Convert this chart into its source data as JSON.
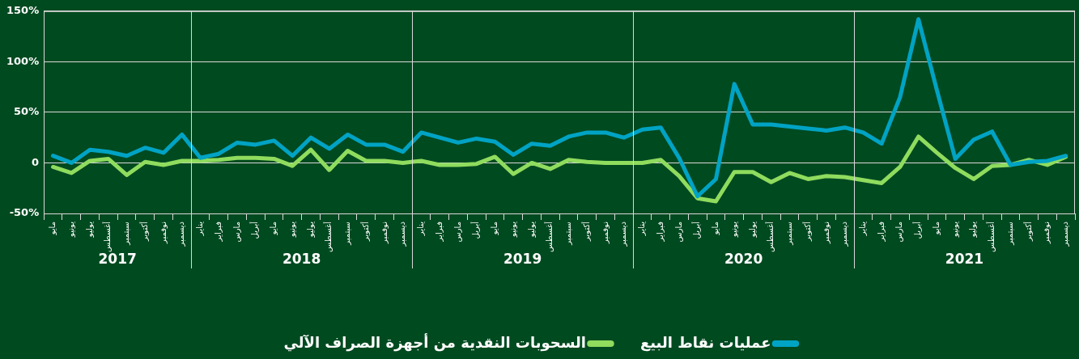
{
  "chart_data": {
    "type": "line",
    "categories": [
      "مايو",
      "يونيو",
      "يوليو",
      "أغسطس",
      "سبتمبر",
      "أكتوبر",
      "نوفمبر",
      "ديسمبر",
      "يناير",
      "فبراير",
      "مارس",
      "أبريل",
      "مايو",
      "يونيو",
      "يوليو",
      "أغسطس",
      "سبتمبر",
      "أكتوبر",
      "نوفمبر",
      "ديسمبر",
      "يناير",
      "فبراير",
      "مارس",
      "أبريل",
      "مايو",
      "يونيو",
      "يوليو",
      "أغسطس",
      "سبتمبر",
      "أكتوبر",
      "نوفمبر",
      "ديسمبر",
      "يناير",
      "فبراير",
      "مارس",
      "أبريل",
      "مايو",
      "يونيو",
      "يوليو",
      "أغسطس",
      "سبتمبر",
      "أكتوبر",
      "نوفمبر",
      "ديسمبر",
      "يناير",
      "فبراير",
      "مارس",
      "أبريل",
      "مايو",
      "يونيو",
      "يوليو",
      "أغسطس",
      "سبتمبر",
      "أكتوبر",
      "نوفمبر",
      "ديسمبر"
    ],
    "series": [
      {
        "name": "عمليات نقاط البيع",
        "color": "#00a3c4",
        "values": [
          7,
          0,
          13,
          11,
          7,
          15,
          10,
          28,
          5,
          9,
          20,
          18,
          22,
          7,
          25,
          14,
          28,
          18,
          18,
          11,
          30,
          25,
          20,
          24,
          21,
          8,
          19,
          17,
          26,
          30,
          30,
          25,
          33,
          35,
          5,
          -33,
          -16,
          78,
          38,
          38,
          36,
          34,
          32,
          35,
          30,
          19,
          65,
          142,
          72,
          4,
          23,
          31,
          -2,
          1,
          2,
          7
        ]
      },
      {
        "name": "السحوبات النقدية من أجهزة الصراف الآلي",
        "color": "#8fdc5e",
        "values": [
          -4,
          -10,
          2,
          4,
          -12,
          1,
          -2,
          2,
          2,
          3,
          5,
          5,
          4,
          -3,
          13,
          -7,
          12,
          2,
          2,
          0,
          2,
          -2,
          -2,
          -1,
          6,
          -11,
          0,
          -6,
          3,
          1,
          0,
          0,
          0,
          3,
          -13,
          -35,
          -38,
          -9,
          -9,
          -19,
          -10,
          -16,
          -13,
          -14,
          -17,
          -20,
          -4,
          26,
          10,
          -5,
          -16,
          -3,
          -2,
          3,
          -2,
          6
        ]
      }
    ],
    "ylim": [
      -50,
      150
    ],
    "yticks": [
      {
        "value": -50,
        "label": "-50%"
      },
      0,
      {
        "value": 50,
        "label": "50%"
      },
      {
        "value": 100,
        "label": "100%"
      },
      {
        "value": 150,
        "label": "150%"
      }
    ],
    "annotations": [
      "2017",
      "2018",
      "2019",
      "2020",
      "2021"
    ],
    "grid": "y",
    "legend": "bottom",
    "marker": "none",
    "line_style": "solid"
  }
}
